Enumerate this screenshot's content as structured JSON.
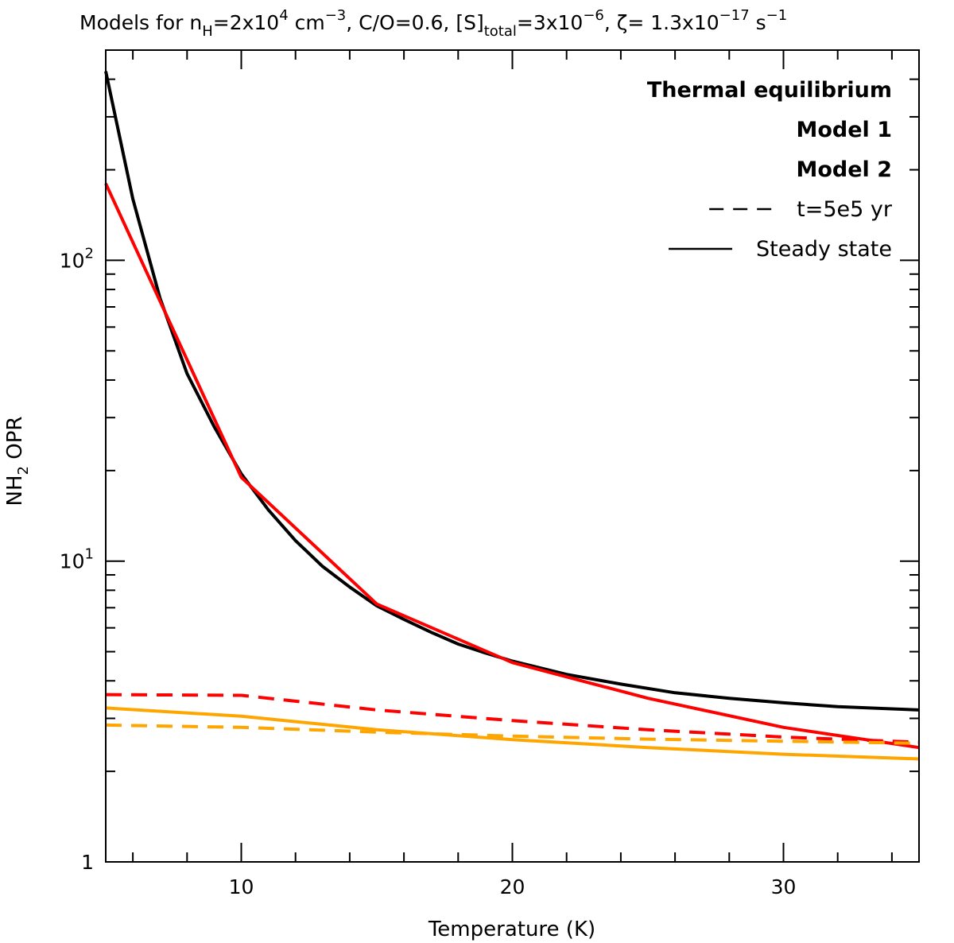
{
  "chart_data": {
    "type": "line",
    "title": {
      "prefix": "Models for n",
      "nh_sub": "H",
      "nh_eq": "=2x10",
      "nh_exp": "4",
      "cm": " cm",
      "cm_exp": "−3",
      "co": ", C/O=0.6, [S]",
      "s_sub": "total",
      "s_eq": "=3x10",
      "s_exp": "−6",
      "zeta": ", ζ= 1.3x10",
      "zeta_exp": "−17",
      "unit": " s",
      "unit_exp": "−1"
    },
    "xlabel": "Temperature (K)",
    "ylabel": {
      "main": "NH",
      "sub": "2",
      "rest": " OPR"
    },
    "xlim": [
      5,
      35
    ],
    "ylim": [
      1,
      500
    ],
    "yscale": "log",
    "x_ticks": [
      {
        "value": 10,
        "label": "10"
      },
      {
        "value": 20,
        "label": "20"
      },
      {
        "value": 30,
        "label": "30"
      }
    ],
    "y_ticks": [
      {
        "value": 1,
        "base": "1",
        "exp": ""
      },
      {
        "value": 10,
        "base": "10",
        "exp": "1"
      },
      {
        "value": 100,
        "base": "10",
        "exp": "2"
      }
    ],
    "series": [
      {
        "name": "Thermal equilibrium",
        "color": "#000000",
        "dash": "solid",
        "x": [
          5,
          6,
          7,
          8,
          9,
          10,
          11,
          12,
          13,
          14,
          15,
          16,
          17,
          18,
          19,
          20,
          22,
          24,
          26,
          28,
          30,
          32,
          35
        ],
        "y": [
          425,
          160,
          75,
          42,
          28,
          19.5,
          14.8,
          11.7,
          9.6,
          8.2,
          7.1,
          6.4,
          5.8,
          5.3,
          4.95,
          4.65,
          4.2,
          3.9,
          3.65,
          3.5,
          3.38,
          3.28,
          3.2
        ]
      },
      {
        "name": "Model 1 steady state",
        "color": "#ff0000",
        "dash": "solid",
        "x": [
          5,
          10,
          15,
          20,
          25,
          30,
          35
        ],
        "y": [
          180,
          19,
          7.2,
          4.6,
          3.5,
          2.8,
          2.4
        ]
      },
      {
        "name": "Model 1 t=5e5 yr",
        "color": "#ff0000",
        "dash": "dashed",
        "x": [
          5,
          10,
          15,
          20,
          25,
          30,
          35
        ],
        "y": [
          3.6,
          3.58,
          3.2,
          2.95,
          2.75,
          2.6,
          2.5
        ]
      },
      {
        "name": "Model 2 steady state",
        "color": "#ffa500",
        "dash": "solid",
        "x": [
          5,
          10,
          15,
          20,
          25,
          30,
          35
        ],
        "y": [
          3.25,
          3.05,
          2.75,
          2.55,
          2.4,
          2.28,
          2.2
        ]
      },
      {
        "name": "Model 2 t=5e5 yr",
        "color": "#ffa500",
        "dash": "dashed",
        "x": [
          5,
          10,
          15,
          20,
          25,
          30,
          35
        ],
        "y": [
          2.85,
          2.8,
          2.7,
          2.62,
          2.56,
          2.52,
          2.48
        ]
      }
    ],
    "legend": {
      "placement": "top-right",
      "entries": [
        {
          "label": "Thermal equilibrium",
          "color": "#000000",
          "bold": true,
          "line": "none"
        },
        {
          "label": "Model 1",
          "color": "#ff0000",
          "bold": true,
          "line": "none"
        },
        {
          "label": "Model 2",
          "color": "#ffa500",
          "bold": true,
          "line": "none"
        },
        {
          "label": "t=5e5 yr",
          "color": "#000000",
          "bold": false,
          "line": "dashed"
        },
        {
          "label": "Steady state",
          "color": "#000000",
          "bold": false,
          "line": "solid"
        }
      ]
    }
  }
}
